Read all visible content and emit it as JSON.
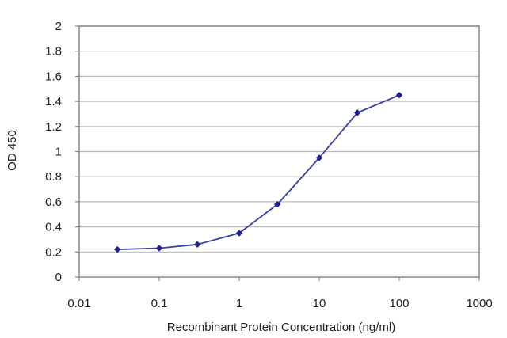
{
  "chart_data": {
    "type": "line",
    "title": "",
    "xlabel": "Recombinant Protein Concentration (ng/ml)",
    "ylabel": "OD 450",
    "x_scale": "log",
    "xlim": [
      0.01,
      1000
    ],
    "ylim": [
      0,
      2
    ],
    "x_ticks": [
      "0.01",
      "0.1",
      "1",
      "10",
      "100",
      "1000"
    ],
    "y_ticks": [
      "0",
      "0.2",
      "0.4",
      "0.6",
      "0.8",
      "1",
      "1.2",
      "1.4",
      "1.6",
      "1.8",
      "2"
    ],
    "grid": "horizontal",
    "legend": "none",
    "series": [
      {
        "x": [
          0.03,
          0.1,
          0.3,
          1,
          3,
          10,
          30,
          100
        ],
        "y": [
          0.22,
          0.23,
          0.26,
          0.35,
          0.58,
          0.95,
          1.31,
          1.45
        ]
      }
    ],
    "colors": {
      "line": "#3a3fa6",
      "marker": "#1f1f8f",
      "grid": "#bbbbbb",
      "frame": "#888888"
    }
  }
}
